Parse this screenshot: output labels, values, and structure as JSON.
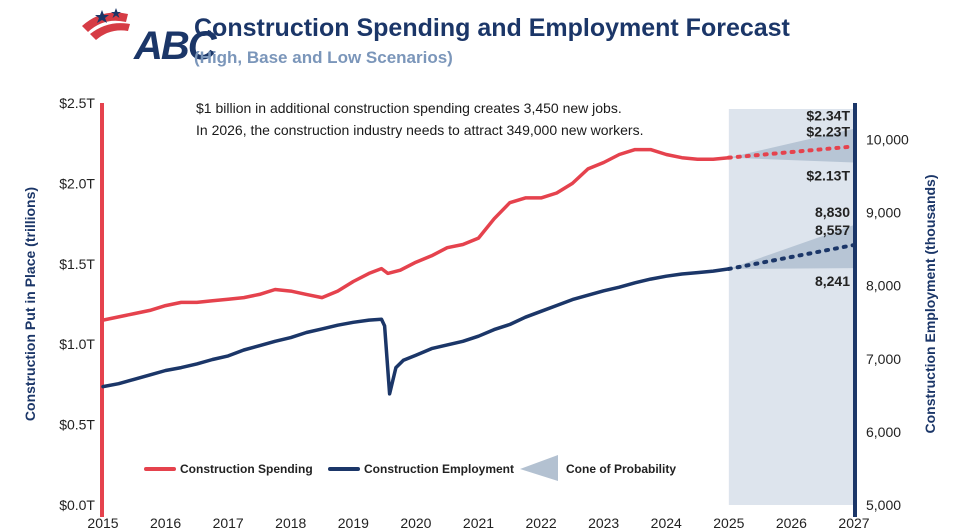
{
  "header": {
    "logo_text": "ABC",
    "title": "Construction Spending and Employment Forecast",
    "subtitle": "(High, Base and Low Scenarios)"
  },
  "note": {
    "line1": "$1 billion in additional construction spending creates 3,450 new jobs.",
    "line2": "In 2026, the construction industry needs to attract 349,000 new workers."
  },
  "colors": {
    "spending": "#e5424d",
    "employment": "#1b3668",
    "cone": "#b3c1d1",
    "forecast_band": "#dde4ed",
    "left_axis": "#e5424d",
    "right_axis": "#1b3668"
  },
  "chart_data": {
    "type": "line",
    "xlabel": "",
    "x_ticks": [
      "2015",
      "2016",
      "2017",
      "2018",
      "2019",
      "2020",
      "2021",
      "2022",
      "2023",
      "2024",
      "2025",
      "2026",
      "2027"
    ],
    "xlim": [
      2015,
      2027
    ],
    "forecast_start": 2025,
    "left_axis": {
      "label": "Construction Put in Place (trillions)",
      "ticks": [
        "$0.0T",
        "$0.5T",
        "$1.0T",
        "$1.5T",
        "$2.0T",
        "$2.5T"
      ],
      "ylim": [
        0,
        2.5
      ]
    },
    "right_axis": {
      "label": "Construction Employment (thousands)",
      "ticks": [
        "5,000",
        "6,000",
        "7,000",
        "8,000",
        "9,000",
        "10,000"
      ],
      "ylim": [
        5000,
        10500
      ]
    },
    "series": [
      {
        "name": "Construction Spending",
        "axis": "left",
        "points": [
          [
            2015.0,
            1.15
          ],
          [
            2015.25,
            1.17
          ],
          [
            2015.5,
            1.19
          ],
          [
            2015.75,
            1.21
          ],
          [
            2016.0,
            1.24
          ],
          [
            2016.25,
            1.26
          ],
          [
            2016.5,
            1.26
          ],
          [
            2016.75,
            1.27
          ],
          [
            2017.0,
            1.28
          ],
          [
            2017.25,
            1.29
          ],
          [
            2017.5,
            1.31
          ],
          [
            2017.75,
            1.34
          ],
          [
            2018.0,
            1.33
          ],
          [
            2018.25,
            1.31
          ],
          [
            2018.5,
            1.29
          ],
          [
            2018.75,
            1.33
          ],
          [
            2019.0,
            1.39
          ],
          [
            2019.25,
            1.44
          ],
          [
            2019.45,
            1.47
          ],
          [
            2019.55,
            1.44
          ],
          [
            2019.75,
            1.46
          ],
          [
            2020.0,
            1.51
          ],
          [
            2020.25,
            1.55
          ],
          [
            2020.5,
            1.6
          ],
          [
            2020.75,
            1.62
          ],
          [
            2021.0,
            1.66
          ],
          [
            2021.25,
            1.78
          ],
          [
            2021.5,
            1.88
          ],
          [
            2021.75,
            1.91
          ],
          [
            2022.0,
            1.91
          ],
          [
            2022.25,
            1.94
          ],
          [
            2022.5,
            2.0
          ],
          [
            2022.75,
            2.09
          ],
          [
            2023.0,
            2.13
          ],
          [
            2023.25,
            2.18
          ],
          [
            2023.5,
            2.21
          ],
          [
            2023.75,
            2.21
          ],
          [
            2024.0,
            2.18
          ],
          [
            2024.25,
            2.16
          ],
          [
            2024.5,
            2.15
          ],
          [
            2024.75,
            2.15
          ],
          [
            2025.0,
            2.16
          ]
        ]
      },
      {
        "name": "Construction Employment",
        "axis": "right",
        "points": [
          [
            2015.0,
            6620
          ],
          [
            2015.25,
            6660
          ],
          [
            2015.5,
            6720
          ],
          [
            2015.75,
            6780
          ],
          [
            2016.0,
            6840
          ],
          [
            2016.25,
            6880
          ],
          [
            2016.5,
            6930
          ],
          [
            2016.75,
            6990
          ],
          [
            2017.0,
            7040
          ],
          [
            2017.25,
            7120
          ],
          [
            2017.5,
            7180
          ],
          [
            2017.75,
            7240
          ],
          [
            2018.0,
            7290
          ],
          [
            2018.25,
            7360
          ],
          [
            2018.5,
            7410
          ],
          [
            2018.75,
            7460
          ],
          [
            2019.0,
            7500
          ],
          [
            2019.25,
            7530
          ],
          [
            2019.45,
            7540
          ],
          [
            2019.5,
            7450
          ],
          [
            2019.58,
            6520
          ],
          [
            2019.68,
            6880
          ],
          [
            2019.8,
            6980
          ],
          [
            2020.0,
            7050
          ],
          [
            2020.25,
            7140
          ],
          [
            2020.5,
            7190
          ],
          [
            2020.75,
            7240
          ],
          [
            2021.0,
            7310
          ],
          [
            2021.25,
            7400
          ],
          [
            2021.5,
            7470
          ],
          [
            2021.75,
            7570
          ],
          [
            2022.0,
            7650
          ],
          [
            2022.25,
            7730
          ],
          [
            2022.5,
            7810
          ],
          [
            2022.75,
            7870
          ],
          [
            2023.0,
            7930
          ],
          [
            2023.25,
            7980
          ],
          [
            2023.5,
            8040
          ],
          [
            2023.75,
            8090
          ],
          [
            2024.0,
            8130
          ],
          [
            2024.25,
            8160
          ],
          [
            2024.5,
            8180
          ],
          [
            2024.75,
            8200
          ],
          [
            2025.0,
            8230
          ]
        ]
      }
    ],
    "forecasts": [
      {
        "name": "Construction Spending Forecast",
        "axis": "left",
        "start": [
          2025.0,
          2.16
        ],
        "end_x": 2027.0,
        "high": 2.34,
        "base": 2.23,
        "low": 2.13,
        "labels": {
          "high": "$2.34T",
          "base": "$2.23T",
          "low": "$2.13T"
        }
      },
      {
        "name": "Construction Employment Forecast",
        "axis": "right",
        "start": [
          2025.0,
          8230
        ],
        "end_x": 2027.0,
        "high": 8830,
        "base": 8557,
        "low": 8241,
        "labels": {
          "high": "8,830",
          "base": "8,557",
          "low": "8,241"
        }
      }
    ],
    "legend": {
      "position": "bottom",
      "items": [
        {
          "label": "Construction Spending",
          "kind": "line",
          "color": "#e5424d"
        },
        {
          "label": "Construction Employment",
          "kind": "line",
          "color": "#1b3668"
        },
        {
          "label": "Cone of Probability",
          "kind": "cone",
          "color": "#b3c1d1"
        }
      ]
    }
  }
}
